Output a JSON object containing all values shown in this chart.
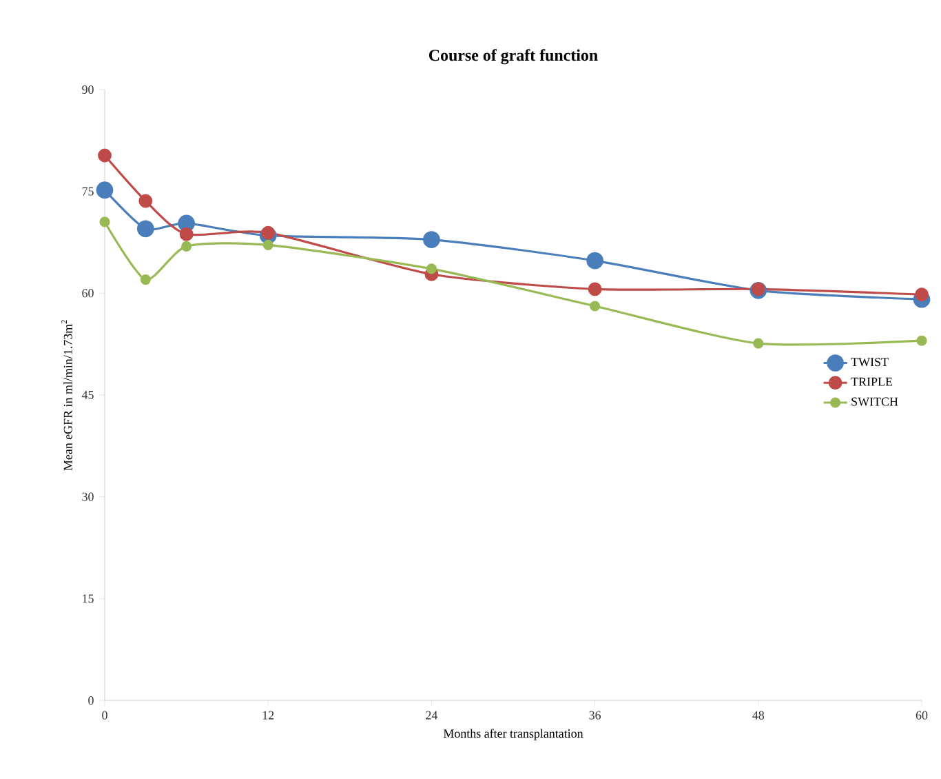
{
  "chart_data": {
    "type": "line",
    "title": "Course of graft function",
    "xlabel": "Months after transplantation",
    "ylabel": "Mean eGFR in ml/min/1.73m$^{2}$",
    "x": [
      0,
      3,
      6,
      12,
      24,
      36,
      48,
      60
    ],
    "series": [
      {
        "name": "TWIST",
        "color": "#4a7ebb",
        "values": [
          75.2,
          69.5,
          70.3,
          68.5,
          67.9,
          64.8,
          60.4,
          59.1
        ]
      },
      {
        "name": "TRIPLE",
        "color": "#be4b48",
        "values": [
          80.3,
          73.6,
          68.7,
          68.9,
          62.8,
          60.6,
          60.6,
          59.8
        ]
      },
      {
        "name": "SWITCH",
        "color": "#98b954",
        "values": [
          70.5,
          62.0,
          66.9,
          67.1,
          63.6,
          58.1,
          52.6,
          53.0
        ]
      }
    ],
    "xlim": [
      0,
      60
    ],
    "ylim": [
      0,
      90
    ],
    "xticks": [
      0,
      12,
      24,
      36,
      48,
      60
    ],
    "yticks": [
      0,
      15,
      30,
      45,
      60,
      75,
      90
    ],
    "legend": "right",
    "marker": "circle",
    "line_style": "solid",
    "grid": false
  }
}
